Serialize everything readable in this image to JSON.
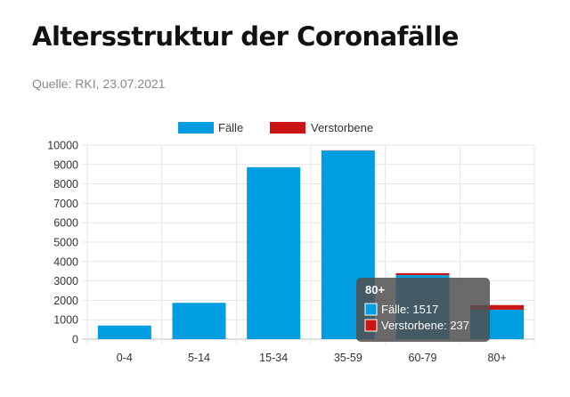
{
  "header": {
    "title": "Altersstruktur der Coronafälle",
    "source": "Quelle: RKI, 23.07.2021"
  },
  "colors": {
    "faelle": "#009de0",
    "verstorbene": "#cc1414",
    "grid": "#e6e6e6",
    "tooltip_bg": "#505050"
  },
  "chart_data": {
    "type": "bar",
    "stacked": true,
    "categories": [
      "0-4",
      "5-14",
      "15-34",
      "35-59",
      "60-79",
      "80+"
    ],
    "series": [
      {
        "name": "Fälle",
        "color": "#009de0",
        "values": [
          700,
          1870,
          8860,
          9720,
          3300,
          1517
        ]
      },
      {
        "name": "Verstorbene",
        "color": "#cc1414",
        "values": [
          0,
          0,
          0,
          10,
          100,
          237
        ]
      }
    ],
    "ylim": [
      0,
      10000
    ],
    "yticks": [
      "0",
      "1000",
      "2000",
      "3000",
      "4000",
      "5000",
      "6000",
      "7000",
      "8000",
      "9000",
      "10000"
    ],
    "grid": true,
    "legend_position": "top",
    "tooltip": {
      "title": "80+",
      "lines": [
        "Fälle: 1517",
        "Verstorbene: 237"
      ]
    }
  }
}
